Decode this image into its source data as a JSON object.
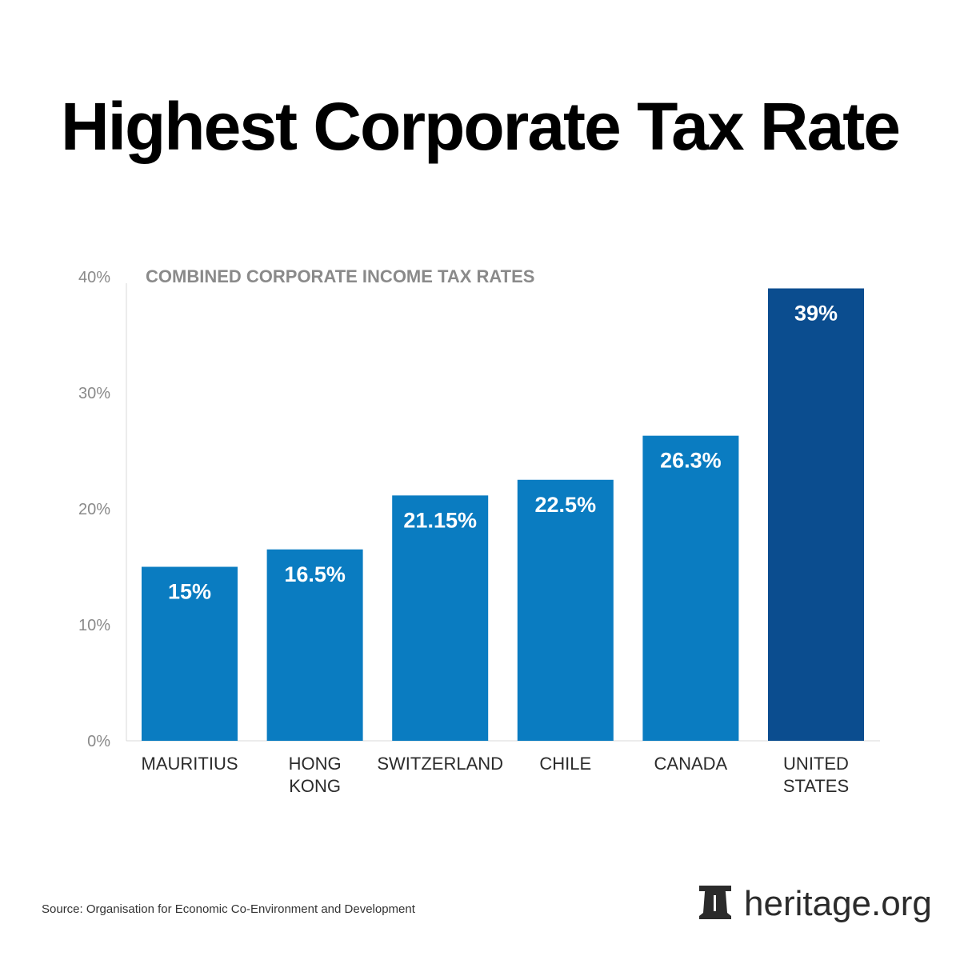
{
  "title": "Highest Corporate Tax Rate",
  "source": "Source: Organisation for Economic Co-Environment and Development",
  "brand": {
    "text": "heritage.org",
    "icon": "liberty-bell-icon"
  },
  "colors": {
    "bar": "#0a7cc1",
    "highlight": "#0b4d8f",
    "tick": "#8a8a8a",
    "subtitle": "#8a8a8a",
    "category": "#2b2b2b",
    "value_label": "#ffffff"
  },
  "chart_data": {
    "type": "bar",
    "subtitle": "COMBINED CORPORATE INCOME TAX RATES",
    "categories": [
      [
        "MAURITIUS"
      ],
      [
        "HONG",
        "KONG"
      ],
      [
        "SWITZERLAND"
      ],
      [
        "CHILE"
      ],
      [
        "CANADA"
      ],
      [
        "UNITED",
        "STATES"
      ]
    ],
    "values": [
      15,
      16.5,
      21.15,
      22.5,
      26.3,
      39
    ],
    "value_labels": [
      "15%",
      "16.5%",
      "21.15%",
      "22.5%",
      "26.3%",
      "39%"
    ],
    "highlight_index": 5,
    "ylim": [
      0,
      40
    ],
    "yticks": [
      0,
      10,
      20,
      30,
      40
    ],
    "ytick_labels": [
      "0%",
      "10%",
      "20%",
      "30%",
      "40%"
    ],
    "grid": false,
    "legend": "none"
  }
}
